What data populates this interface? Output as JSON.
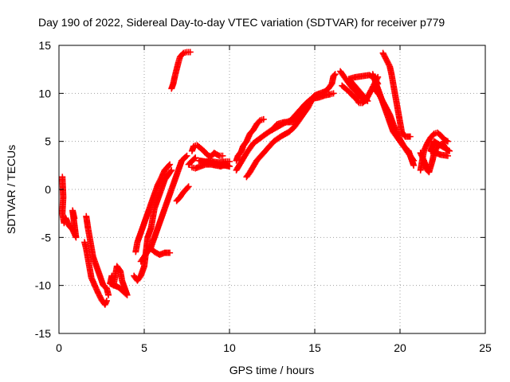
{
  "chart_data": {
    "type": "scatter",
    "title": "Day 190 of 2022, Sidereal Day-to-day VTEC variation (SDTVAR) for receiver p779",
    "xlabel": "GPS time / hours",
    "ylabel": "SDTVAR / TECUs",
    "xlim": [
      0,
      25
    ],
    "ylim": [
      -15,
      15
    ],
    "xticks": [
      0,
      5,
      10,
      15,
      20,
      25
    ],
    "yticks": [
      -15,
      -10,
      -5,
      0,
      5,
      10,
      15
    ],
    "grid": true,
    "marker": "+",
    "color": "#ff0000",
    "series": [
      {
        "points": [
          [
            0.2,
            1.3
          ],
          [
            0.25,
            -0.8
          ],
          [
            0.2,
            -2.5
          ],
          [
            0.3,
            -3.5
          ],
          [
            0.4,
            -3.0
          ],
          [
            0.6,
            -3.8
          ],
          [
            0.8,
            -4.2
          ],
          [
            1.0,
            -5.0
          ],
          [
            0.8,
            -2.2
          ],
          [
            0.9,
            -3.0
          ]
        ]
      },
      {
        "points": [
          [
            1.6,
            -2.8
          ],
          [
            1.7,
            -4.0
          ],
          [
            1.8,
            -5.0
          ],
          [
            1.9,
            -6.0
          ],
          [
            2.0,
            -7.0
          ],
          [
            2.2,
            -8.0
          ],
          [
            2.4,
            -9.0
          ],
          [
            2.6,
            -10.0
          ],
          [
            2.8,
            -10.3
          ],
          [
            2.9,
            -11.0
          ]
        ]
      },
      {
        "points": [
          [
            1.5,
            -5.5
          ],
          [
            1.6,
            -6.2
          ],
          [
            1.7,
            -7.2
          ],
          [
            1.8,
            -8.2
          ],
          [
            1.9,
            -9.2
          ],
          [
            2.1,
            -10.0
          ],
          [
            2.3,
            -10.8
          ],
          [
            2.5,
            -11.5
          ],
          [
            2.7,
            -12.0
          ],
          [
            2.8,
            -11.6
          ]
        ]
      },
      {
        "points": [
          [
            3.2,
            -10.0
          ],
          [
            3.3,
            -9.0
          ],
          [
            3.4,
            -8.0
          ],
          [
            3.6,
            -8.5
          ],
          [
            3.7,
            -9.5
          ],
          [
            3.9,
            -10.5
          ],
          [
            4.0,
            -11.0
          ],
          [
            3.5,
            -10.2
          ],
          [
            3.0,
            -9.8
          ],
          [
            3.1,
            -9.0
          ]
        ]
      },
      {
        "points": [
          [
            4.4,
            -9.0
          ],
          [
            4.6,
            -9.5
          ],
          [
            4.8,
            -9.0
          ],
          [
            5.0,
            -8.0
          ],
          [
            5.1,
            -6.5
          ],
          [
            5.2,
            -5.0
          ],
          [
            5.4,
            -4.0
          ],
          [
            5.5,
            -3.0
          ],
          [
            5.6,
            -2.0
          ],
          [
            5.8,
            -1.0
          ],
          [
            6.0,
            0.0
          ],
          [
            6.2,
            1.0
          ],
          [
            6.4,
            1.5
          ],
          [
            6.6,
            2.0
          ]
        ]
      },
      {
        "points": [
          [
            4.5,
            -6.5
          ],
          [
            4.6,
            -5.5
          ],
          [
            4.8,
            -4.5
          ],
          [
            5.0,
            -3.5
          ],
          [
            5.2,
            -2.5
          ],
          [
            5.4,
            -1.5
          ],
          [
            5.6,
            -0.5
          ],
          [
            5.8,
            0.5
          ],
          [
            6.0,
            1.2
          ],
          [
            6.2,
            2.0
          ],
          [
            6.5,
            2.6
          ]
        ]
      },
      {
        "points": [
          [
            4.8,
            -7.5
          ],
          [
            5.0,
            -7.0
          ],
          [
            5.2,
            -6.5
          ],
          [
            5.4,
            -6.0
          ],
          [
            5.6,
            -5.0
          ],
          [
            5.8,
            -4.0
          ],
          [
            6.0,
            -3.0
          ],
          [
            6.2,
            -2.0
          ],
          [
            6.4,
            -1.0
          ],
          [
            6.6,
            0.0
          ],
          [
            6.8,
            1.0
          ],
          [
            7.0,
            2.0
          ],
          [
            7.2,
            3.0
          ],
          [
            7.5,
            3.5
          ]
        ]
      },
      {
        "points": [
          [
            5.3,
            -6.0
          ],
          [
            5.6,
            -6.5
          ],
          [
            5.9,
            -6.8
          ],
          [
            6.2,
            -6.6
          ],
          [
            6.5,
            -6.6
          ],
          [
            6.9,
            -1.2
          ],
          [
            7.1,
            -0.8
          ],
          [
            7.3,
            -0.3
          ],
          [
            7.6,
            0.3
          ]
        ]
      },
      {
        "points": [
          [
            6.6,
            10.5
          ],
          [
            6.7,
            11.0
          ],
          [
            6.8,
            11.8
          ],
          [
            6.9,
            12.5
          ],
          [
            7.0,
            13.2
          ],
          [
            7.1,
            13.8
          ],
          [
            7.3,
            14.2
          ],
          [
            7.5,
            14.3
          ],
          [
            7.7,
            14.3
          ]
        ]
      },
      {
        "points": [
          [
            7.8,
            4.0
          ],
          [
            7.9,
            4.5
          ],
          [
            8.1,
            4.6
          ],
          [
            8.3,
            4.3
          ],
          [
            8.5,
            4.0
          ],
          [
            8.7,
            3.6
          ],
          [
            8.9,
            3.4
          ],
          [
            9.1,
            3.8
          ],
          [
            9.4,
            3.5
          ],
          [
            9.6,
            3.5
          ]
        ]
      },
      {
        "points": [
          [
            7.8,
            2.3
          ],
          [
            8.0,
            2.2
          ],
          [
            8.3,
            2.4
          ],
          [
            8.6,
            2.6
          ],
          [
            8.9,
            2.6
          ],
          [
            9.2,
            2.5
          ],
          [
            9.5,
            2.4
          ],
          [
            9.8,
            2.6
          ],
          [
            10.0,
            2.4
          ],
          [
            8.2,
            3.0
          ],
          [
            8.6,
            2.9
          ],
          [
            9.0,
            2.9
          ],
          [
            9.4,
            2.8
          ],
          [
            9.8,
            2.9
          ],
          [
            10.0,
            2.9
          ],
          [
            7.6,
            2.6
          ],
          [
            8.0,
            3.3
          ]
        ]
      },
      {
        "points": [
          [
            10.4,
            3.0
          ],
          [
            10.5,
            3.5
          ],
          [
            10.7,
            4.0
          ],
          [
            10.8,
            4.5
          ],
          [
            11.0,
            5.0
          ],
          [
            11.2,
            5.8
          ],
          [
            11.4,
            6.2
          ],
          [
            11.6,
            6.8
          ],
          [
            11.8,
            7.2
          ],
          [
            12.0,
            7.3
          ]
        ]
      },
      {
        "points": [
          [
            10.4,
            2.0
          ],
          [
            10.6,
            2.6
          ],
          [
            10.8,
            3.2
          ],
          [
            11.0,
            3.8
          ],
          [
            11.2,
            4.3
          ],
          [
            11.4,
            4.8
          ],
          [
            11.7,
            5.2
          ],
          [
            12.0,
            5.6
          ],
          [
            12.4,
            6.1
          ],
          [
            12.8,
            6.5
          ],
          [
            13.2,
            6.9
          ],
          [
            13.6,
            7.2
          ],
          [
            14.0,
            7.6
          ]
        ]
      },
      {
        "points": [
          [
            11.0,
            1.3
          ],
          [
            11.2,
            1.8
          ],
          [
            11.4,
            2.4
          ],
          [
            11.6,
            3.0
          ],
          [
            11.9,
            3.6
          ],
          [
            12.2,
            4.2
          ],
          [
            12.6,
            5.0
          ],
          [
            13.0,
            5.5
          ],
          [
            13.5,
            6.0
          ],
          [
            13.8,
            6.5
          ],
          [
            14.0,
            7.0
          ],
          [
            14.2,
            7.5
          ],
          [
            14.4,
            8.0
          ],
          [
            14.6,
            8.5
          ],
          [
            14.8,
            9.2
          ],
          [
            15.0,
            9.6
          ]
        ]
      },
      {
        "points": [
          [
            12.5,
            6.2
          ],
          [
            12.8,
            6.8
          ],
          [
            13.2,
            7.0
          ],
          [
            13.6,
            7.0
          ],
          [
            14.0,
            7.2
          ],
          [
            14.3,
            8.0
          ],
          [
            14.6,
            9.0
          ],
          [
            15.0,
            9.8
          ],
          [
            15.3,
            10.0
          ],
          [
            15.6,
            10.2
          ],
          [
            15.8,
            10.5
          ],
          [
            16.0,
            11.0
          ],
          [
            16.1,
            11.8
          ],
          [
            16.2,
            12.0
          ]
        ]
      },
      {
        "points": [
          [
            13.5,
            7.0
          ],
          [
            13.8,
            7.6
          ],
          [
            14.1,
            8.2
          ],
          [
            14.4,
            8.8
          ],
          [
            14.7,
            9.3
          ],
          [
            15.0,
            9.5
          ],
          [
            15.3,
            9.6
          ],
          [
            15.6,
            9.8
          ],
          [
            15.9,
            9.9
          ],
          [
            16.1,
            10.0
          ]
        ]
      },
      {
        "points": [
          [
            16.5,
            12.3
          ],
          [
            16.7,
            11.8
          ],
          [
            16.9,
            11.3
          ],
          [
            17.1,
            10.8
          ],
          [
            17.3,
            10.4
          ],
          [
            17.5,
            10.0
          ],
          [
            17.7,
            9.6
          ],
          [
            17.9,
            9.3
          ],
          [
            18.1,
            9.2
          ],
          [
            17.0,
            11.5
          ],
          [
            17.4,
            11.7
          ],
          [
            17.8,
            11.8
          ],
          [
            18.2,
            11.9
          ],
          [
            18.5,
            11.6
          ],
          [
            18.7,
            11.0
          ]
        ]
      },
      {
        "points": [
          [
            16.6,
            10.8
          ],
          [
            16.8,
            10.5
          ],
          [
            17.0,
            10.2
          ],
          [
            17.2,
            9.8
          ],
          [
            17.4,
            9.5
          ],
          [
            17.6,
            9.0
          ],
          [
            17.8,
            9.0
          ],
          [
            18.0,
            9.3
          ],
          [
            18.3,
            10.3
          ],
          [
            18.5,
            11.0
          ],
          [
            18.7,
            11.7
          ]
        ]
      },
      {
        "points": [
          [
            18.5,
            10.5
          ],
          [
            18.8,
            9.8
          ],
          [
            19.1,
            8.8
          ],
          [
            19.4,
            7.8
          ],
          [
            19.6,
            6.8
          ],
          [
            19.8,
            6.0
          ],
          [
            20.0,
            5.2
          ],
          [
            20.2,
            4.6
          ],
          [
            20.4,
            4.0
          ],
          [
            20.6,
            3.5
          ],
          [
            20.8,
            3.0
          ]
        ]
      },
      {
        "points": [
          [
            19.0,
            14.2
          ],
          [
            19.2,
            13.5
          ],
          [
            19.4,
            12.8
          ],
          [
            19.5,
            12.0
          ],
          [
            19.6,
            11.0
          ],
          [
            19.7,
            10.0
          ],
          [
            19.8,
            9.0
          ],
          [
            19.9,
            8.0
          ],
          [
            20.0,
            7.0
          ],
          [
            20.1,
            6.0
          ],
          [
            20.3,
            5.5
          ],
          [
            20.6,
            5.5
          ]
        ]
      },
      {
        "points": [
          [
            18.4,
            12.0
          ],
          [
            18.6,
            11.0
          ],
          [
            18.8,
            10.0
          ],
          [
            19.0,
            9.0
          ],
          [
            19.2,
            8.0
          ],
          [
            19.4,
            7.0
          ],
          [
            19.6,
            6.0
          ],
          [
            19.8,
            5.5
          ],
          [
            20.0,
            5.0
          ],
          [
            20.2,
            4.5
          ],
          [
            20.5,
            4.0
          ],
          [
            20.8,
            2.5
          ]
        ]
      },
      {
        "points": [
          [
            21.2,
            2.0
          ],
          [
            21.3,
            3.0
          ],
          [
            21.4,
            4.0
          ],
          [
            21.6,
            4.8
          ],
          [
            21.8,
            5.4
          ],
          [
            22.0,
            5.8
          ],
          [
            22.2,
            5.9
          ],
          [
            22.4,
            5.6
          ],
          [
            22.6,
            5.2
          ],
          [
            22.8,
            5.0
          ]
        ]
      },
      {
        "points": [
          [
            21.2,
            3.8
          ],
          [
            21.4,
            3.0
          ],
          [
            21.6,
            2.0
          ],
          [
            21.7,
            1.8
          ],
          [
            21.9,
            3.0
          ],
          [
            22.0,
            3.8
          ],
          [
            22.2,
            4.5
          ],
          [
            22.5,
            4.8
          ],
          [
            22.7,
            4.2
          ],
          [
            22.9,
            4.0
          ],
          [
            22.0,
            5.0
          ],
          [
            21.8,
            4.0
          ],
          [
            22.4,
            3.6
          ],
          [
            22.8,
            3.5
          ]
        ]
      }
    ]
  }
}
